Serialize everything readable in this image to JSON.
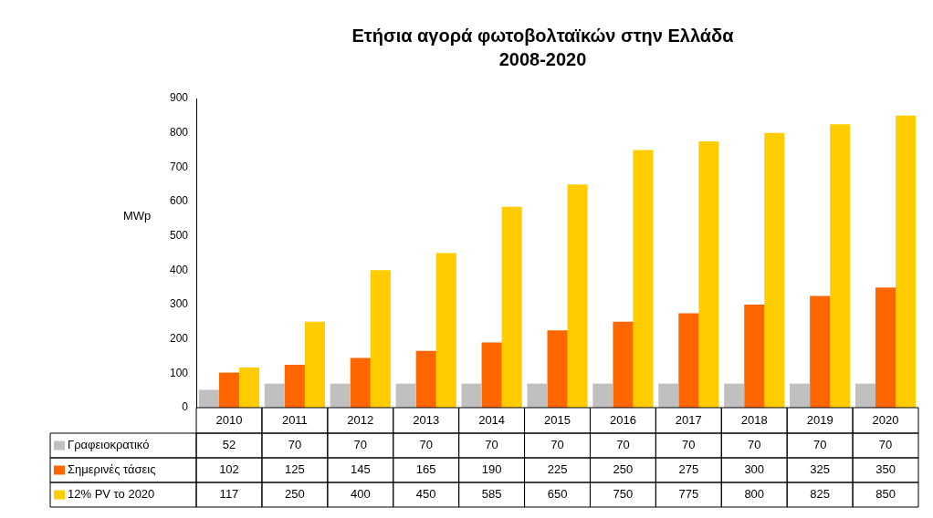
{
  "chart_data": {
    "type": "bar",
    "title": "Ετήσια αγορά φωτοβολταϊκών στην Ελλάδα",
    "subtitle": "2008-2020",
    "ylabel": "MWp",
    "categories": [
      "2010",
      "2011",
      "2012",
      "2013",
      "2014",
      "2015",
      "2016",
      "2017",
      "2018",
      "2019",
      "2020"
    ],
    "series": [
      {
        "name": "Γραφειοκρατικό",
        "color": "#c0c0c0",
        "values": [
          52,
          70,
          70,
          70,
          70,
          70,
          70,
          70,
          70,
          70,
          70
        ]
      },
      {
        "name": "Σημερινές τάσεις",
        "color": "#ff6600",
        "values": [
          102,
          125,
          145,
          165,
          190,
          225,
          250,
          275,
          300,
          325,
          350
        ]
      },
      {
        "name": "12% PV το 2020",
        "color": "#ffcc00",
        "values": [
          117,
          250,
          400,
          450,
          585,
          650,
          750,
          775,
          800,
          825,
          850
        ]
      }
    ],
    "ylim": [
      0,
      900
    ],
    "yticks": [
      0,
      100,
      200,
      300,
      400,
      500,
      600,
      700,
      800,
      900
    ],
    "grid": false,
    "legend": "bottom",
    "data_labels": true
  }
}
